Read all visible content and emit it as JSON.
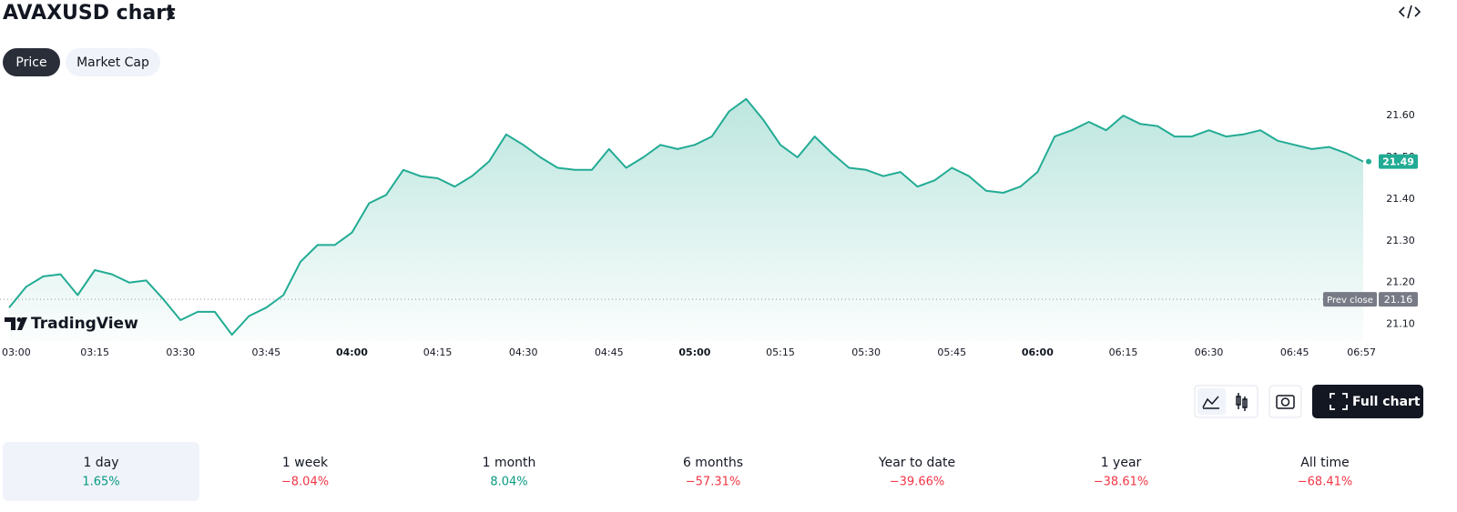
{
  "header": {
    "title": "AVAXUSD chart"
  },
  "tabs": [
    "Price",
    "Market Cap"
  ],
  "chart_data": {
    "type": "line",
    "color": "#22ab94",
    "x": [
      "03:00",
      "03:03",
      "03:06",
      "03:09",
      "03:12",
      "03:15",
      "03:18",
      "03:21",
      "03:24",
      "03:27",
      "03:30",
      "03:33",
      "03:36",
      "03:39",
      "03:42",
      "03:45",
      "03:48",
      "03:51",
      "03:54",
      "03:57",
      "04:00",
      "04:03",
      "04:06",
      "04:09",
      "04:12",
      "04:15",
      "04:18",
      "04:21",
      "04:24",
      "04:27",
      "04:30",
      "04:33",
      "04:36",
      "04:39",
      "04:42",
      "04:45",
      "04:48",
      "04:51",
      "04:54",
      "04:57",
      "05:00",
      "05:03",
      "05:06",
      "05:09",
      "05:12",
      "05:15",
      "05:18",
      "05:21",
      "05:24",
      "05:27",
      "05:30",
      "05:33",
      "05:36",
      "05:39",
      "05:42",
      "05:45",
      "05:48",
      "05:51",
      "05:54",
      "05:57",
      "06:00",
      "06:03",
      "06:06",
      "06:09",
      "06:12",
      "06:15",
      "06:18",
      "06:21",
      "06:24",
      "06:27",
      "06:30",
      "06:33",
      "06:36",
      "06:39",
      "06:42",
      "06:45",
      "06:48",
      "06:51",
      "06:54",
      "06:57"
    ],
    "values": [
      21.14,
      21.19,
      21.215,
      21.22,
      21.17,
      21.23,
      21.22,
      21.2,
      21.205,
      21.16,
      21.11,
      21.13,
      21.13,
      21.075,
      21.12,
      21.14,
      21.17,
      21.25,
      21.29,
      21.29,
      21.32,
      21.39,
      21.41,
      21.47,
      21.455,
      21.45,
      21.43,
      21.455,
      21.49,
      21.555,
      21.53,
      21.5,
      21.475,
      21.47,
      21.47,
      21.52,
      21.475,
      21.5,
      21.53,
      21.52,
      21.53,
      21.55,
      21.61,
      21.64,
      21.59,
      21.53,
      21.5,
      21.55,
      21.51,
      21.475,
      21.47,
      21.455,
      21.465,
      21.43,
      21.445,
      21.475,
      21.455,
      21.42,
      21.415,
      21.43,
      21.465,
      21.55,
      21.565,
      21.585,
      21.565,
      21.6,
      21.58,
      21.575,
      21.55,
      21.55,
      21.565,
      21.55,
      21.555,
      21.565,
      21.54,
      21.53,
      21.52,
      21.525,
      21.51,
      21.49
    ],
    "xticks": [
      "03:00",
      "03:15",
      "03:30",
      "03:45",
      "04:00",
      "04:15",
      "04:30",
      "04:45",
      "05:00",
      "05:15",
      "05:30",
      "05:45",
      "06:00",
      "06:15",
      "06:30",
      "06:45",
      "06:57"
    ],
    "ylim": [
      21.06,
      21.67
    ],
    "yticks": [
      {
        "value": 21.1,
        "label": "21.10"
      },
      {
        "value": 21.2,
        "label": "21.20"
      },
      {
        "value": 21.3,
        "label": "21.30"
      },
      {
        "value": 21.4,
        "label": "21.40"
      },
      {
        "value": 21.5,
        "label": "21.50"
      },
      {
        "value": 21.6,
        "label": "21.60"
      }
    ],
    "current_price": {
      "value": 21.49,
      "label": "21.49"
    },
    "prev_close": {
      "name": "Prev close",
      "value": 21.16,
      "label": "21.16"
    },
    "grid": false
  },
  "logo": "TradingView",
  "full_chart": "Full chart",
  "periods": [
    {
      "label": "1 day",
      "change": "1.65%",
      "color": "#089981"
    },
    {
      "label": "1 week",
      "change": "−8.04%",
      "color": "#f23645"
    },
    {
      "label": "1 month",
      "change": "8.04%",
      "color": "#089981"
    },
    {
      "label": "6 months",
      "change": "−57.31%",
      "color": "#f23645"
    },
    {
      "label": "Year to date",
      "change": "−39.66%",
      "color": "#f23645"
    },
    {
      "label": "1 year",
      "change": "−38.61%",
      "color": "#f23645"
    },
    {
      "label": "All time",
      "change": "−68.41%",
      "color": "#f23645"
    }
  ]
}
